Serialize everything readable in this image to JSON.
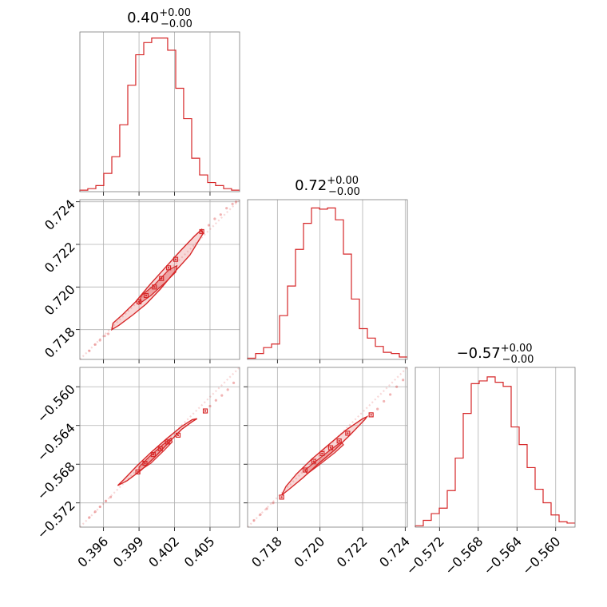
{
  "figure": {
    "type": "corner",
    "color": "#d62728"
  },
  "chart_data": [
    {
      "type": "histogram",
      "id": "p1",
      "title": {
        "value": "0.40",
        "plus": "+0.00",
        "minus": "−0.00"
      },
      "xlim": [
        0.394,
        0.4075
      ],
      "bins": [
        0.394,
        0.39467,
        0.39535,
        0.39602,
        0.3967,
        0.39737,
        0.39805,
        0.39872,
        0.3994,
        0.40007,
        0.40075,
        0.40142,
        0.4021,
        0.40277,
        0.40345,
        0.40412,
        0.4048,
        0.40547,
        0.40615,
        0.40682,
        0.4075
      ],
      "counts": [
        1,
        2,
        4,
        12,
        23,
        44,
        70,
        90,
        98,
        101,
        101,
        93,
        68,
        48,
        22,
        11,
        6,
        4,
        2,
        1
      ],
      "ymax": 105,
      "xticks": [
        0.396,
        0.399,
        0.402,
        0.405
      ],
      "xtick_labels": [
        "0.396",
        "0.399",
        "0.402",
        "0.405"
      ]
    },
    {
      "type": "histogram",
      "id": "p5",
      "title": {
        "value": "0.72",
        "plus": "+0.00",
        "minus": "−0.00"
      },
      "xlim": [
        0.7166,
        0.7241
      ],
      "bins": [
        0.7166,
        0.716975,
        0.71735,
        0.717725,
        0.7181,
        0.718475,
        0.71885,
        0.719225,
        0.7196,
        0.719975,
        0.72035,
        0.720725,
        0.7211,
        0.721475,
        0.72185,
        0.722225,
        0.7226,
        0.722975,
        0.72335,
        0.723725,
        0.7241
      ],
      "counts": [
        1,
        5,
        10,
        13,
        37,
        62,
        93,
        115,
        128,
        127,
        128,
        118,
        89,
        51,
        26,
        18,
        11,
        6,
        5,
        2
      ],
      "ymax": 135,
      "xticks": [
        0.718,
        0.72,
        0.722,
        0.724
      ],
      "xtick_labels": [
        "0.718",
        "0.720",
        "0.722",
        "0.724"
      ]
    },
    {
      "type": "histogram",
      "id": "p9",
      "title": {
        "value": "−0.57",
        "plus": "+0.00",
        "minus": "−0.00"
      },
      "xlim": [
        -0.5745,
        -0.558
      ],
      "bins": [
        -0.5745,
        -0.573675,
        -0.57285,
        -0.572025,
        -0.5712,
        -0.570375,
        -0.56955,
        -0.568725,
        -0.5679,
        -0.567075,
        -0.56625,
        -0.565425,
        -0.5646,
        -0.563775,
        -0.56295,
        -0.562125,
        -0.5613,
        -0.560475,
        -0.55965,
        -0.558825,
        -0.558
      ],
      "counts": [
        1,
        5,
        10,
        14,
        27,
        51,
        84,
        106,
        108,
        111,
        107,
        104,
        74,
        61,
        44,
        28,
        18,
        9,
        4,
        3
      ],
      "ymax": 118,
      "xticks": [
        -0.572,
        -0.568,
        -0.564,
        -0.56
      ],
      "xtick_labels": [
        "−0.572",
        "−0.568",
        "−0.564",
        "−0.560"
      ]
    },
    {
      "type": "scatter-contour",
      "id": "p4",
      "xlim": [
        0.394,
        0.4075
      ],
      "ylim": [
        0.7166,
        0.7241
      ],
      "yticks": [
        0.718,
        0.72,
        0.722,
        0.724
      ],
      "ytick_labels": [
        "0.718",
        "0.720",
        "0.722",
        "0.724"
      ],
      "line": {
        "x": [
          0.394,
          0.4075
        ],
        "y": [
          0.7166,
          0.7241
        ]
      },
      "contour_outer": [
        [
          0.3967,
          0.718
        ],
        [
          0.3973,
          0.7182
        ],
        [
          0.3985,
          0.7187
        ],
        [
          0.3996,
          0.7192
        ],
        [
          0.4008,
          0.7199
        ],
        [
          0.402,
          0.7207
        ],
        [
          0.4033,
          0.7215
        ],
        [
          0.4044,
          0.7225
        ],
        [
          0.4043,
          0.7227
        ],
        [
          0.4037,
          0.7224
        ],
        [
          0.4025,
          0.7217
        ],
        [
          0.4012,
          0.7209
        ],
        [
          0.3999,
          0.7201
        ],
        [
          0.3987,
          0.7193
        ],
        [
          0.3976,
          0.7187
        ],
        [
          0.3968,
          0.7183
        ]
      ],
      "contour_inner": [
        [
          0.399,
          0.7192
        ],
        [
          0.4,
          0.7196
        ],
        [
          0.4012,
          0.7202
        ],
        [
          0.4021,
          0.7207
        ],
        [
          0.4022,
          0.721
        ],
        [
          0.4015,
          0.7208
        ],
        [
          0.4003,
          0.7201
        ],
        [
          0.3992,
          0.7196
        ]
      ],
      "points": [
        [
          0.399,
          0.7193
        ],
        [
          0.3996,
          0.7196
        ],
        [
          0.4003,
          0.72
        ],
        [
          0.4009,
          0.7204
        ],
        [
          0.4015,
          0.7209
        ],
        [
          0.4021,
          0.7213
        ],
        [
          0.4043,
          0.7226
        ]
      ],
      "faint_points": [
        [
          0.3948,
          0.717
        ],
        [
          0.3953,
          0.7173
        ],
        [
          0.3957,
          0.7175
        ],
        [
          0.3961,
          0.7177
        ],
        [
          0.3964,
          0.7178
        ],
        [
          0.4049,
          0.7229
        ],
        [
          0.4054,
          0.7232
        ],
        [
          0.4059,
          0.7234
        ],
        [
          0.4064,
          0.7237
        ],
        [
          0.4069,
          0.7239
        ],
        [
          0.4072,
          0.724
        ]
      ]
    },
    {
      "type": "scatter-contour",
      "id": "p7",
      "xlim": [
        0.394,
        0.4075
      ],
      "ylim": [
        -0.5745,
        -0.558
      ],
      "yticks": [
        -0.572,
        -0.568,
        -0.564,
        -0.56
      ],
      "ytick_labels": [
        "−0.572",
        "−0.568",
        "−0.564",
        "−0.560"
      ],
      "line": {
        "x": [
          0.394,
          0.4075
        ],
        "y": [
          -0.5745,
          -0.558
        ]
      },
      "contour_outer": [
        [
          0.3972,
          -0.5702
        ],
        [
          0.398,
          -0.5697
        ],
        [
          0.3992,
          -0.5686
        ],
        [
          0.4003,
          -0.5673
        ],
        [
          0.4014,
          -0.5659
        ],
        [
          0.4026,
          -0.5644
        ],
        [
          0.4035,
          -0.5636
        ],
        [
          0.4039,
          -0.5633
        ],
        [
          0.4035,
          -0.5634
        ],
        [
          0.4026,
          -0.5641
        ],
        [
          0.4013,
          -0.5654
        ],
        [
          0.4,
          -0.5668
        ],
        [
          0.3988,
          -0.5682
        ],
        [
          0.3977,
          -0.5696
        ]
      ],
      "contour_inner": [
        [
          0.399,
          -0.5687
        ],
        [
          0.4,
          -0.5679
        ],
        [
          0.4011,
          -0.5666
        ],
        [
          0.4018,
          -0.5657
        ],
        [
          0.4017,
          -0.5653
        ],
        [
          0.4009,
          -0.5661
        ],
        [
          0.3998,
          -0.5673
        ],
        [
          0.399,
          -0.5683
        ]
      ],
      "points": [
        [
          0.3989,
          -0.5688
        ],
        [
          0.3995,
          -0.5679
        ],
        [
          0.4002,
          -0.567
        ],
        [
          0.4008,
          -0.5664
        ],
        [
          0.4014,
          -0.5657
        ],
        [
          0.4023,
          -0.565
        ],
        [
          0.4046,
          -0.5625
        ]
      ],
      "faint_points": [
        [
          0.3948,
          -0.5735
        ],
        [
          0.3953,
          -0.5729
        ],
        [
          0.3957,
          -0.5724
        ],
        [
          0.3962,
          -0.5718
        ],
        [
          0.3966,
          -0.5714
        ],
        [
          0.405,
          -0.562
        ],
        [
          0.4055,
          -0.5614
        ],
        [
          0.406,
          -0.5609
        ],
        [
          0.4065,
          -0.5603
        ],
        [
          0.407,
          -0.5596
        ]
      ]
    },
    {
      "type": "scatter-contour",
      "id": "p8",
      "xlim": [
        0.7166,
        0.7241
      ],
      "ylim": [
        -0.5745,
        -0.558
      ],
      "line": {
        "x": [
          0.7166,
          0.7241
        ],
        "y": [
          -0.5745,
          -0.558
        ]
      },
      "contour_outer": [
        [
          0.7182,
          -0.5712
        ],
        [
          0.7186,
          -0.5705
        ],
        [
          0.7192,
          -0.5694
        ],
        [
          0.7199,
          -0.568
        ],
        [
          0.7207,
          -0.5665
        ],
        [
          0.7214,
          -0.565
        ],
        [
          0.7221,
          -0.5634
        ],
        [
          0.7222,
          -0.5631
        ],
        [
          0.722,
          -0.5633
        ],
        [
          0.7212,
          -0.5645
        ],
        [
          0.7204,
          -0.566
        ],
        [
          0.7196,
          -0.5675
        ],
        [
          0.7189,
          -0.569
        ],
        [
          0.7184,
          -0.5703
        ]
      ],
      "contour_inner": [
        [
          0.7194,
          -0.569
        ],
        [
          0.72,
          -0.568
        ],
        [
          0.7207,
          -0.5668
        ],
        [
          0.7211,
          -0.566
        ],
        [
          0.721,
          -0.5657
        ],
        [
          0.7205,
          -0.5665
        ],
        [
          0.7198,
          -0.5677
        ],
        [
          0.7193,
          -0.5686
        ]
      ],
      "points": [
        [
          0.7182,
          -0.5714
        ],
        [
          0.7193,
          -0.5686
        ],
        [
          0.7197,
          -0.5677
        ],
        [
          0.7201,
          -0.5669
        ],
        [
          0.7205,
          -0.5663
        ],
        [
          0.7209,
          -0.5656
        ],
        [
          0.7213,
          -0.5648
        ],
        [
          0.7224,
          -0.5629
        ]
      ],
      "faint_points": [
        [
          0.7169,
          -0.5738
        ],
        [
          0.7172,
          -0.5732
        ],
        [
          0.7175,
          -0.5726
        ],
        [
          0.7178,
          -0.572
        ],
        [
          0.7227,
          -0.5623
        ],
        [
          0.723,
          -0.5615
        ],
        [
          0.7233,
          -0.5608
        ],
        [
          0.7236,
          -0.56
        ],
        [
          0.7239,
          -0.5593
        ]
      ]
    }
  ]
}
